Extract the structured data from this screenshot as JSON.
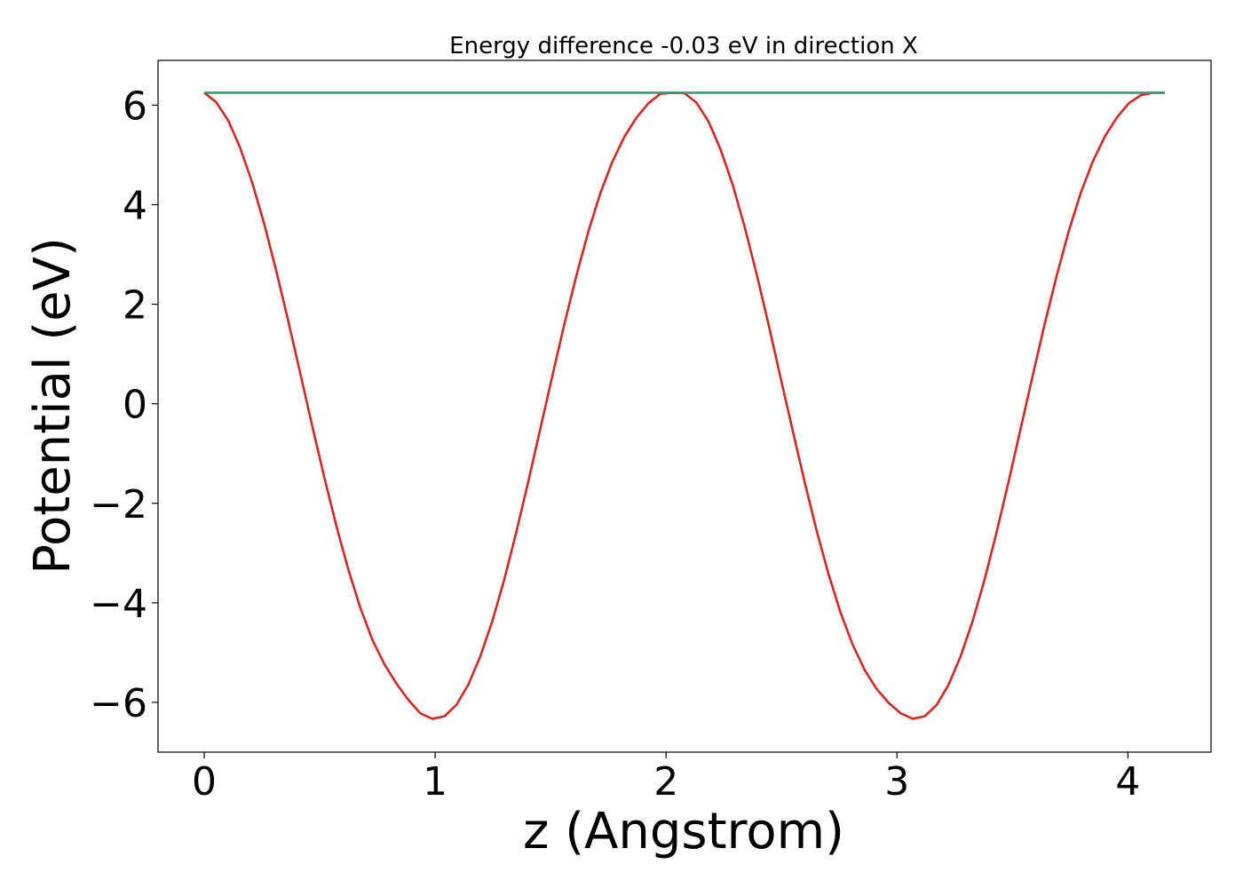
{
  "chart_data": {
    "type": "line",
    "title": "Energy difference -0.03 eV in direction X",
    "xlabel": "z (Angstrom)",
    "ylabel": "Potential (eV)",
    "xlim": [
      -0.2,
      4.36
    ],
    "ylim": [
      -7.0,
      6.9
    ],
    "xticks": [
      0,
      1,
      2,
      3,
      4
    ],
    "xtick_labels": [
      "0",
      "1",
      "2",
      "3",
      "4"
    ],
    "yticks": [
      6,
      4,
      2,
      0,
      -2,
      -4,
      -6
    ],
    "ytick_labels": [
      "6",
      "4",
      "2",
      "0",
      "−2",
      "−4",
      "−6"
    ],
    "grid": false,
    "series": [
      {
        "color": "#d62728",
        "x": [
          0,
          0.052,
          0.104,
          0.156,
          0.208,
          0.26,
          0.312,
          0.364,
          0.416,
          0.468,
          0.52,
          0.572,
          0.624,
          0.676,
          0.728,
          0.78,
          0.832,
          0.884,
          0.936,
          0.988,
          1.04,
          1.092,
          1.144,
          1.196,
          1.248,
          1.3,
          1.352,
          1.404,
          1.456,
          1.508,
          1.56,
          1.612,
          1.664,
          1.716,
          1.768,
          1.82,
          1.872,
          1.924,
          1.976,
          2.028,
          2.08,
          2.132,
          2.184,
          2.236,
          2.288,
          2.34,
          2.392,
          2.444,
          2.496,
          2.548,
          2.6,
          2.652,
          2.704,
          2.756,
          2.808,
          2.86,
          2.912,
          2.964,
          3.016,
          3.068,
          3.12,
          3.172,
          3.224,
          3.276,
          3.328,
          3.38,
          3.432,
          3.484,
          3.536,
          3.588,
          3.64,
          3.692,
          3.744,
          3.796,
          3.848,
          3.9,
          3.952,
          4.004,
          4.056,
          4.108,
          4.16
        ],
        "y": [
          6.25,
          6.06,
          5.69,
          5.14,
          4.44,
          3.61,
          2.67,
          1.66,
          0.61,
          -0.45,
          -1.48,
          -2.45,
          -3.33,
          -4.1,
          -4.74,
          -5.23,
          -5.62,
          -5.95,
          -6.22,
          -6.33,
          -6.28,
          -6.05,
          -5.64,
          -5.07,
          -4.36,
          -3.52,
          -2.57,
          -1.55,
          -0.49,
          0.57,
          1.61,
          2.58,
          3.47,
          4.24,
          4.87,
          5.37,
          5.75,
          6.04,
          6.23,
          6.25,
          6.24,
          6.05,
          5.67,
          5.11,
          4.41,
          3.56,
          2.61,
          1.59,
          0.52,
          -0.53,
          -1.57,
          -2.55,
          -3.43,
          -4.2,
          -4.84,
          -5.35,
          -5.73,
          -6.01,
          -6.22,
          -6.33,
          -6.28,
          -6.05,
          -5.64,
          -5.07,
          -4.36,
          -3.52,
          -2.57,
          -1.55,
          -0.49,
          0.57,
          1.61,
          2.58,
          3.47,
          4.24,
          4.87,
          5.37,
          5.75,
          6.04,
          6.2,
          6.25,
          6.25
        ]
      },
      {
        "color": "#3a9a6e",
        "x": [
          0,
          4.16
        ],
        "y": [
          6.25,
          6.25
        ]
      }
    ]
  }
}
